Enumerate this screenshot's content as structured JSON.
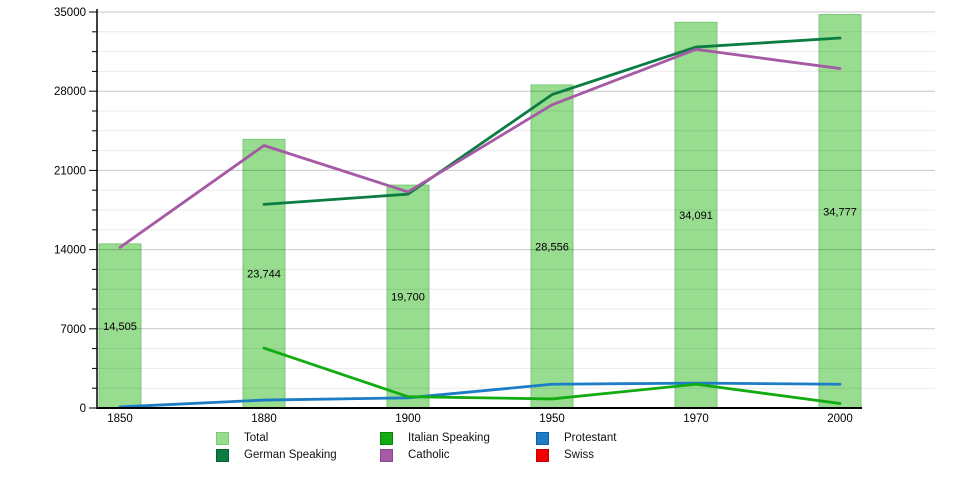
{
  "chart_data": {
    "type": "bar",
    "subtype": "bar-line-combo",
    "title": "",
    "xlabel": "",
    "ylabel": "",
    "categories": [
      "1850",
      "1880",
      "1900",
      "1950",
      "1970",
      "2000"
    ],
    "ylim": [
      0,
      35000
    ],
    "y_major_ticks": [
      0,
      7000,
      14000,
      21000,
      28000,
      35000
    ],
    "y_minor_step": 1750,
    "grid": true,
    "legend_position": "bottom",
    "bar_series": {
      "name": "Total",
      "values": [
        14505,
        23744,
        19700,
        28556,
        34091,
        34777
      ],
      "value_labels": [
        "14,505",
        "23,744",
        "19,700",
        "28,556",
        "34,091",
        "34,777"
      ],
      "fill": "#98DC90",
      "border": "#7DC87A"
    },
    "line_series": [
      {
        "name": "Protestant",
        "color": "#1C7CC5",
        "values": [
          100,
          700,
          900,
          2100,
          2200,
          2100
        ]
      },
      {
        "name": "Italian Speaking",
        "color": "#12AC12",
        "values": [
          null,
          5300,
          1000,
          800,
          2100,
          400
        ]
      },
      {
        "name": "German Speaking",
        "color": "#0B7C42",
        "values": [
          null,
          18000,
          18900,
          27700,
          31900,
          32700
        ]
      },
      {
        "name": "Catholic",
        "color": "#A55AA5",
        "values": [
          14200,
          23200,
          19100,
          26800,
          31700,
          30000
        ]
      },
      {
        "name": "Swiss",
        "color": "#F20000",
        "values": [
          null,
          null,
          null,
          null,
          null,
          null
        ]
      }
    ],
    "legend": [
      {
        "label": "Total",
        "fill": "#98DC90",
        "border": "#7DC87A"
      },
      {
        "label": "Italian Speaking",
        "fill": "#12AC12",
        "border": "#0D830D"
      },
      {
        "label": "Protestant",
        "fill": "#1C7CC5",
        "border": "#15609A"
      },
      {
        "label": "German Speaking",
        "fill": "#0B7C42",
        "border": "#085E33"
      },
      {
        "label": "Catholic",
        "fill": "#A55AA5",
        "border": "#8A4596"
      },
      {
        "label": "Swiss",
        "fill": "#F20000",
        "border": "#C00000"
      }
    ]
  }
}
